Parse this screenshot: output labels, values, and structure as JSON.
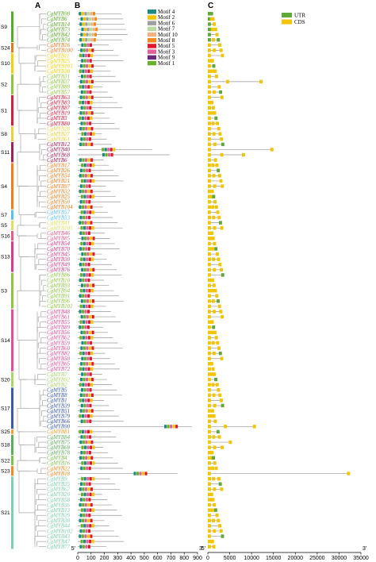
{
  "panels": {
    "a": "A",
    "b": "B",
    "c": "C"
  },
  "motif_legend": [
    {
      "label": "Motif 4",
      "color": "#1a8c80"
    },
    {
      "label": "Motif 2",
      "color": "#f5c400"
    },
    {
      "label": "Motif 6",
      "color": "#a0a0a0"
    },
    {
      "label": "Motif 7",
      "color": "#b5dba0"
    },
    {
      "label": "Motif 10",
      "color": "#f4b183"
    },
    {
      "label": "Motif 8",
      "color": "#f58a1f"
    },
    {
      "label": "Motif 5",
      "color": "#e0182a"
    },
    {
      "label": "Motif 3",
      "color": "#e0609a"
    },
    {
      "label": "Motif 9",
      "color": "#6a2a7a"
    },
    {
      "label": "Motif 1",
      "color": "#6ab02a"
    }
  ],
  "structure_legend": [
    {
      "label": "UTR",
      "color": "#5fa83a"
    },
    {
      "label": "CDS",
      "color": "#f2c500"
    }
  ],
  "axis_b": {
    "ticks": [
      "0",
      "100",
      "200",
      "300",
      "400",
      "500",
      "600",
      "700",
      "800",
      "900"
    ],
    "start": "5'",
    "end": "3'"
  },
  "axis_c": {
    "ticks": [
      "0",
      "5000",
      "10000",
      "15000",
      "20000",
      "25000",
      "30000",
      "35000"
    ],
    "start": "5'",
    "end": "3'"
  },
  "subgroups": [
    {
      "name": "S9",
      "color": "#5aaa2a",
      "genes": [
        "CgMYB98",
        "CgMYB6",
        "CgMYB14",
        "CgMYB73",
        "CgMYB42",
        "CgMYB74"
      ]
    },
    {
      "name": "S24",
      "color": "#e07b20",
      "genes": [
        "CgMYB16",
        "CgMYB100"
      ]
    },
    {
      "name": "S10",
      "color": "#f2d20a",
      "genes": [
        "CgMYB11",
        "CgMYB25",
        "CgMYB103",
        "CgMYB30"
      ]
    },
    {
      "name": "S2",
      "color": "#8cc83c",
      "genes": [
        "CgMYB31",
        "CgMYB37",
        "CgMYB88",
        "CgMYB57"
      ]
    },
    {
      "name": "S1",
      "color": "#d32040",
      "genes": [
        "CgMYB63",
        "CgMYB83",
        "CgMYB87",
        "CgMYB19",
        "CgMYB3",
        "CgMYB80"
      ]
    },
    {
      "name": "S8",
      "color": "#ead03a",
      "genes": [
        "CgMYB28",
        "CgMYB27",
        "CgMYB61"
      ]
    },
    {
      "name": "S11",
      "color": "#a0205a",
      "genes": [
        "CgMYB12",
        "CgMYB40",
        "CgMYB68",
        "CgMYB6"
      ]
    },
    {
      "name": "S4",
      "color": "#f07f1d",
      "genes": [
        "CgMYB17",
        "CgMYB26",
        "CgMYB34",
        "CgMYB21",
        "CgMYB97",
        "CgMYB32",
        "CgMYB25",
        "CgMYB50",
        "CgMYB104"
      ]
    },
    {
      "name": "S7",
      "color": "#5bc0eb",
      "genes": [
        "CgMYB57",
        "CgMYB33"
      ]
    },
    {
      "name": "S5",
      "color": "#e0e060",
      "genes": [
        "CgMYB41",
        "CgMYB105"
      ]
    },
    {
      "name": "S16",
      "color": "#e85a8a",
      "genes": [
        "CgMYB46",
        "CgMYB85"
      ]
    },
    {
      "name": "S13",
      "color": "#d63c8c",
      "genes": [
        "CgMYB54",
        "CgMYB70",
        "CgMYB45",
        "CgMYB30",
        "CgMYB49",
        "CgMYB76"
      ]
    },
    {
      "name": "S3",
      "color": "#8ec63f",
      "genes": [
        "CgMYB86",
        "CgMYB10",
        "CgMYB93",
        "CgMYB94",
        "CgMYB91",
        "CgMYB96",
        "CgMYB101"
      ]
    },
    {
      "name": "S14",
      "color": "#e0509a",
      "genes": [
        "CgMYB48",
        "CgMYB61",
        "CgMYB55",
        "CgMYB89",
        "CgMYB56",
        "CgMYB62",
        "CgMYB59",
        "CgMYB60",
        "CgMYB82",
        "CgMYB58",
        "CgMYB65",
        "CgMYB72"
      ]
    },
    {
      "name": "S20",
      "color": "#a8d468",
      "genes": [
        "CgMYB7",
        "CgMYB92",
        "CgMYB2"
      ]
    },
    {
      "name": "S17",
      "color": "#3a5ba8",
      "genes": [
        "CgMYB5",
        "CgMYB8",
        "CgMYB1",
        "CgMYB39",
        "CgMYB51",
        "CgMYB79",
        "CgMYB66",
        "CgMYB90"
      ]
    },
    {
      "name": "S25",
      "color": "#f0a030",
      "genes": [
        "CgMYB81"
      ]
    },
    {
      "name": "S18",
      "color": "#5fae5f",
      "genes": [
        "CgMYB84",
        "CgMYB75",
        "CgMYB69",
        "CgMYB78"
      ]
    },
    {
      "name": "S22",
      "color": "#7cc24e",
      "genes": [
        "CgMYB4",
        "CgMYB16"
      ]
    },
    {
      "name": "S23",
      "color": "#f08a24",
      "genes": [
        "CgMYB22",
        "CgMYB18"
      ]
    },
    {
      "name": "S21",
      "color": "#7fd0b0",
      "genes": [
        "CgMYB9",
        "CgMYB35",
        "CgMYB67",
        "CgMYB20",
        "CgMYB58",
        "CgMYB36",
        "CgMYB13",
        "CgMYB29",
        "CgMYB38",
        "CgMYB44",
        "CgMYB102",
        "CgMYB43",
        "CgMYB47",
        "CgMYB77"
      ]
    }
  ]
}
